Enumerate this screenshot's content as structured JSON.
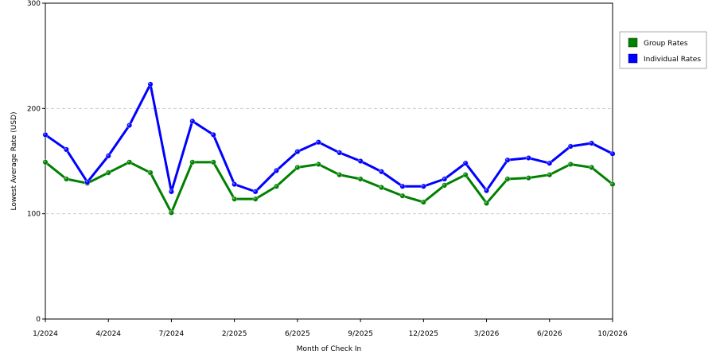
{
  "chart_data": {
    "type": "line",
    "xlabel": "Month of Check In",
    "ylabel": "Lowest Average Rate (USD)",
    "ylim": [
      0,
      300
    ],
    "y_ticks": [
      0,
      100,
      200,
      300
    ],
    "grid": "horizontal dashed",
    "legend_position": "right",
    "x_tick_labels": [
      "1/2024",
      "4/2024",
      "7/2024",
      "2/2025",
      "6/2025",
      "9/2025",
      "12/2025",
      "3/2026",
      "6/2026",
      "10/2026"
    ],
    "x_tick_indices": [
      0,
      3,
      6,
      9,
      12,
      15,
      18,
      21,
      24,
      27
    ],
    "point_count": 28,
    "series": [
      {
        "name": "Group Rates",
        "color": "#008000",
        "values": [
          149,
          133,
          129,
          139,
          149,
          139,
          101,
          149,
          149,
          114,
          114,
          126,
          144,
          147,
          137,
          133,
          125,
          117,
          111,
          127,
          137,
          110,
          133,
          134,
          137,
          147,
          144,
          128
        ]
      },
      {
        "name": "Individual Rates",
        "color": "#0000ff",
        "values": [
          175,
          161,
          130,
          155,
          184,
          223,
          121,
          188,
          175,
          128,
          121,
          141,
          159,
          168,
          158,
          150,
          140,
          126,
          126,
          133,
          148,
          122,
          151,
          153,
          148,
          164,
          167,
          157
        ]
      }
    ]
  }
}
